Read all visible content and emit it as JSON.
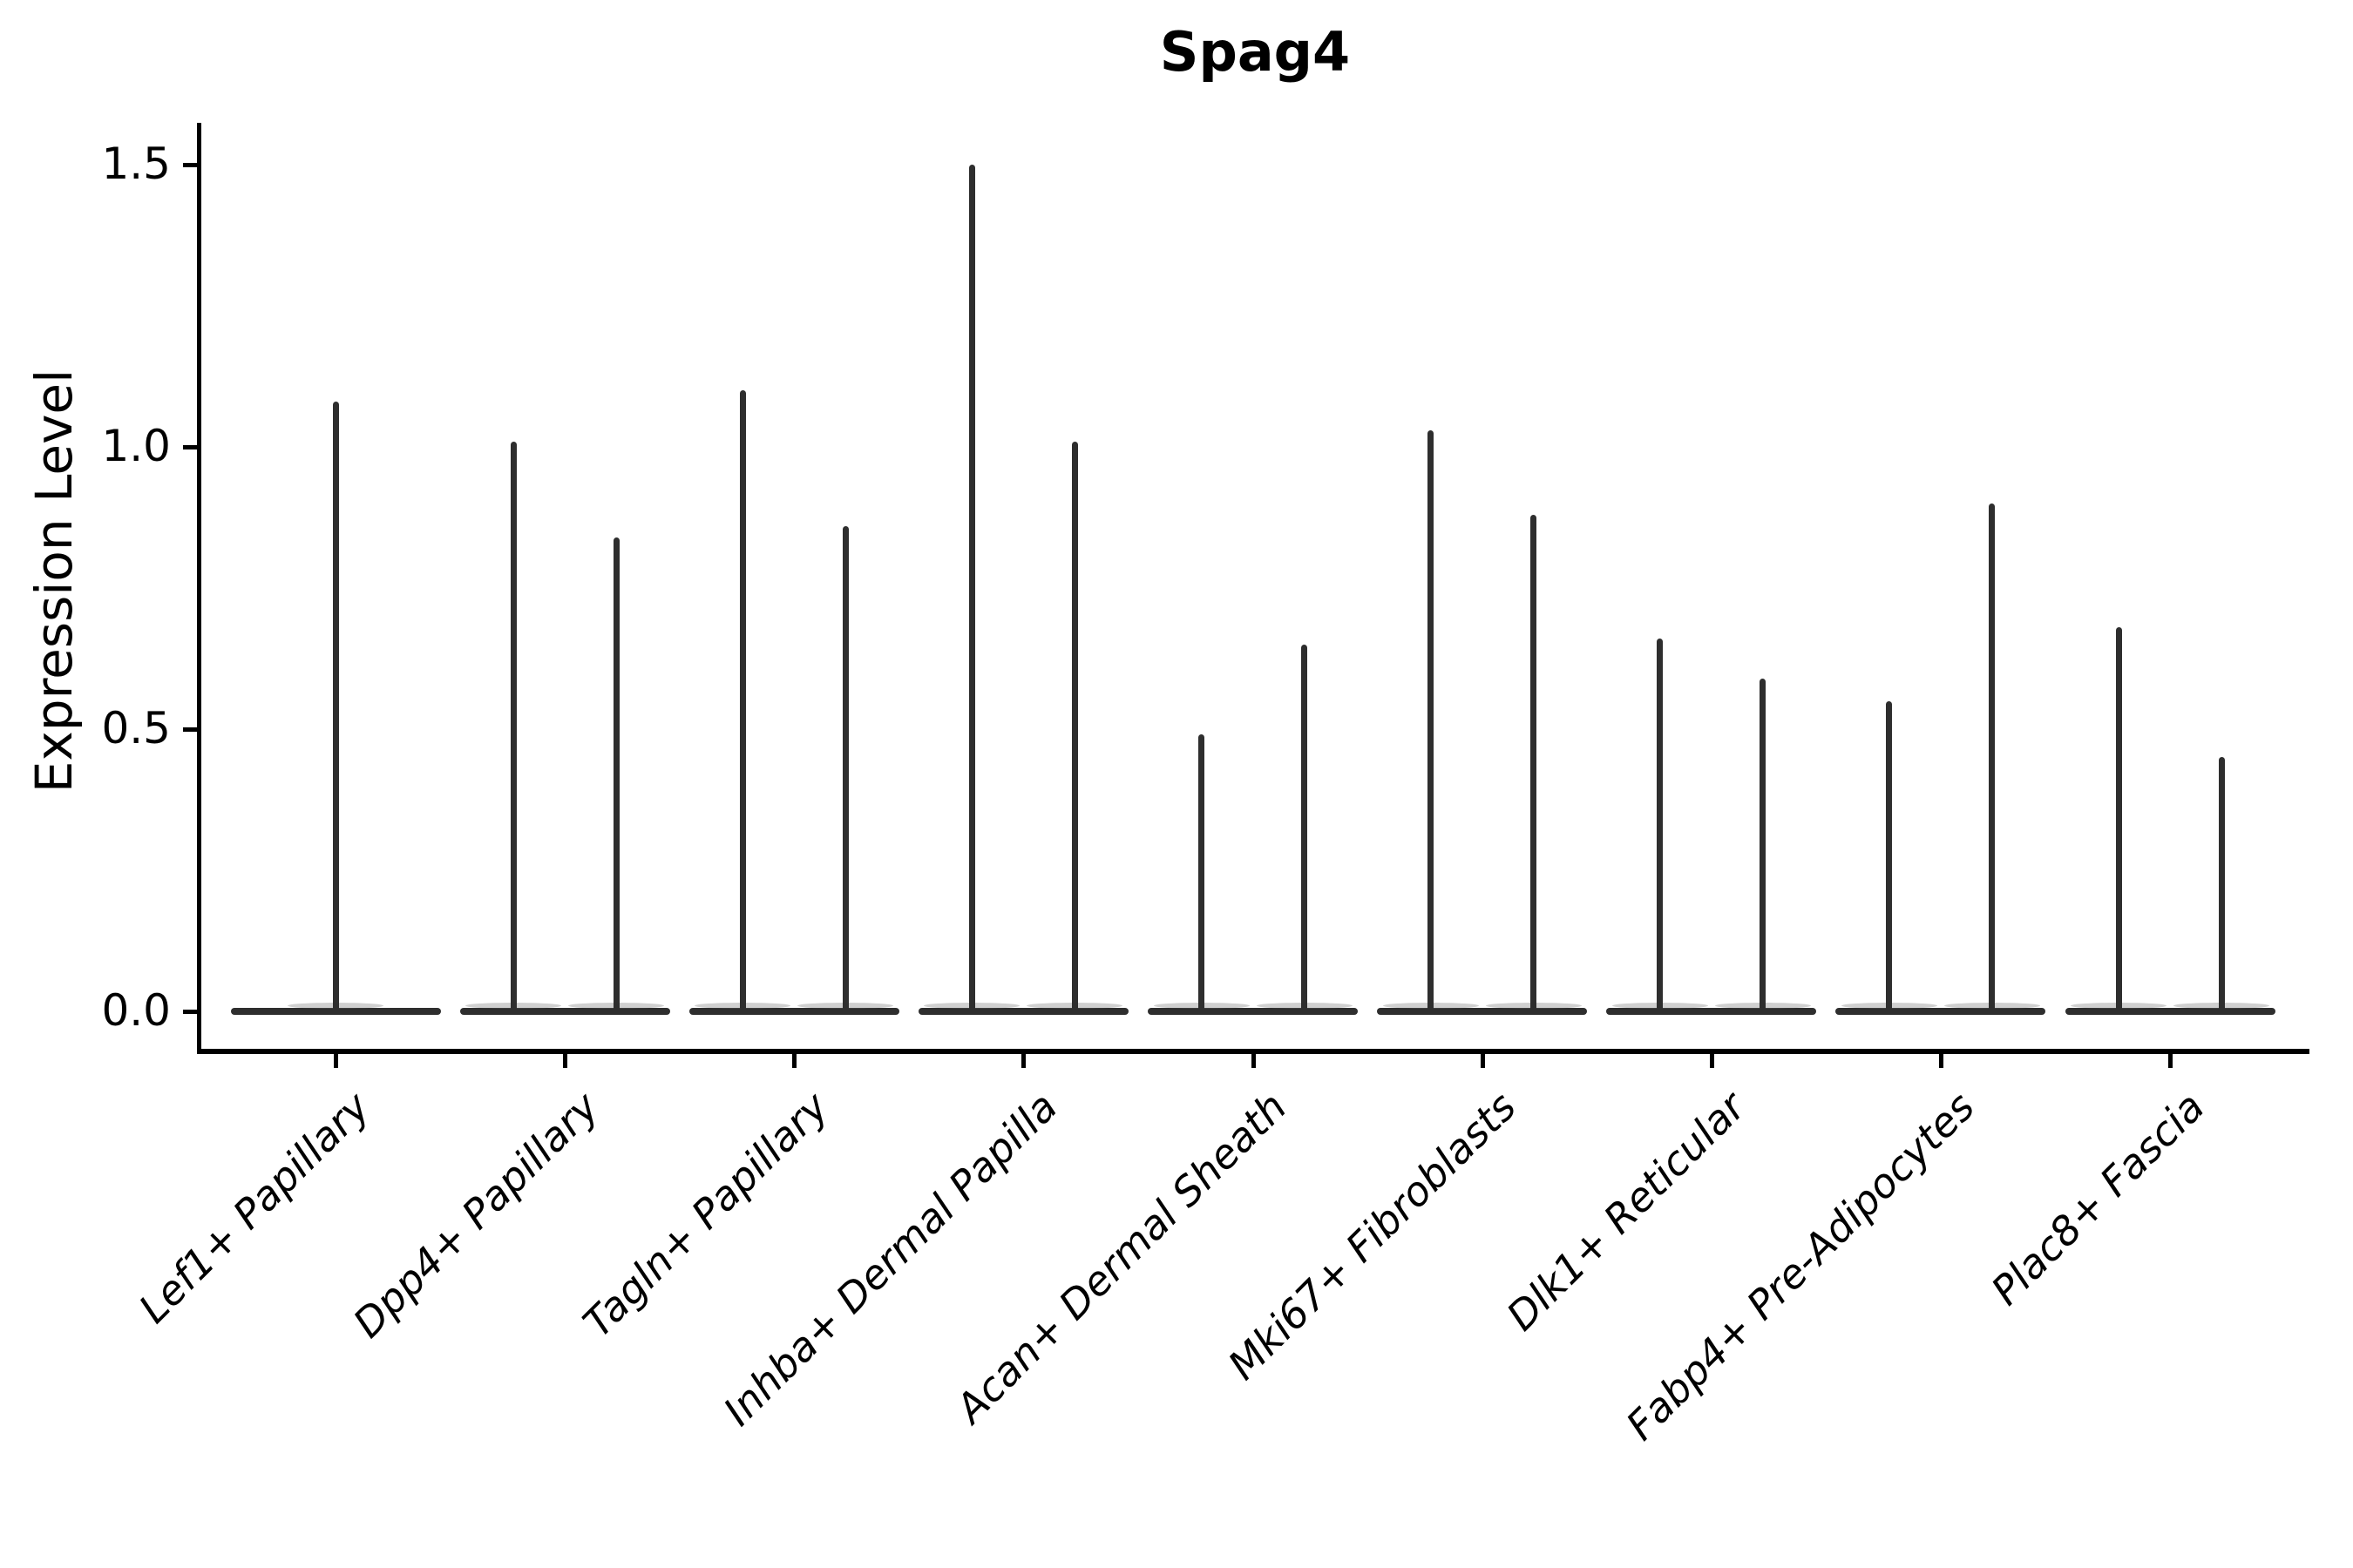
{
  "chart_data": {
    "type": "violin",
    "title": "Spag4",
    "ylabel": "Expression Level",
    "xlabel": "",
    "categories": [
      "Lef1+ Papillary",
      "Dpp4+ Papillary",
      "Tagln+ Papillary",
      "Inhba+ Dermal Papilla",
      "Acan+ Dermal Sheath",
      "Mki67+ Fibroblasts",
      "Dlk1+ Reticular",
      "Fabp4+ Pre-Adipocytes",
      "Plac8+ Fascia"
    ],
    "series_max_expression": [
      [
        1.08
      ],
      [
        1.01,
        0.84
      ],
      [
        1.1,
        0.86
      ],
      [
        1.5,
        1.01
      ],
      [
        0.49,
        0.65
      ],
      [
        1.03,
        0.88
      ],
      [
        0.66,
        0.59
      ],
      [
        0.55,
        0.9
      ],
      [
        0.68,
        0.45
      ]
    ],
    "violins_per_category": [
      1,
      2,
      2,
      2,
      2,
      2,
      2,
      2,
      2
    ],
    "baseline_value": 0.0,
    "yticks": [
      0.0,
      0.5,
      1.0,
      1.5
    ],
    "ytick_labels": [
      "0.0",
      "0.5",
      "1.0",
      "1.5"
    ],
    "ylim": [
      -0.07,
      1.57
    ],
    "grid": false,
    "legend": null,
    "colors": {
      "violin_stroke": "#2e2e2e",
      "axis": "#000000",
      "text": "#000000",
      "background": "#ffffff"
    }
  }
}
